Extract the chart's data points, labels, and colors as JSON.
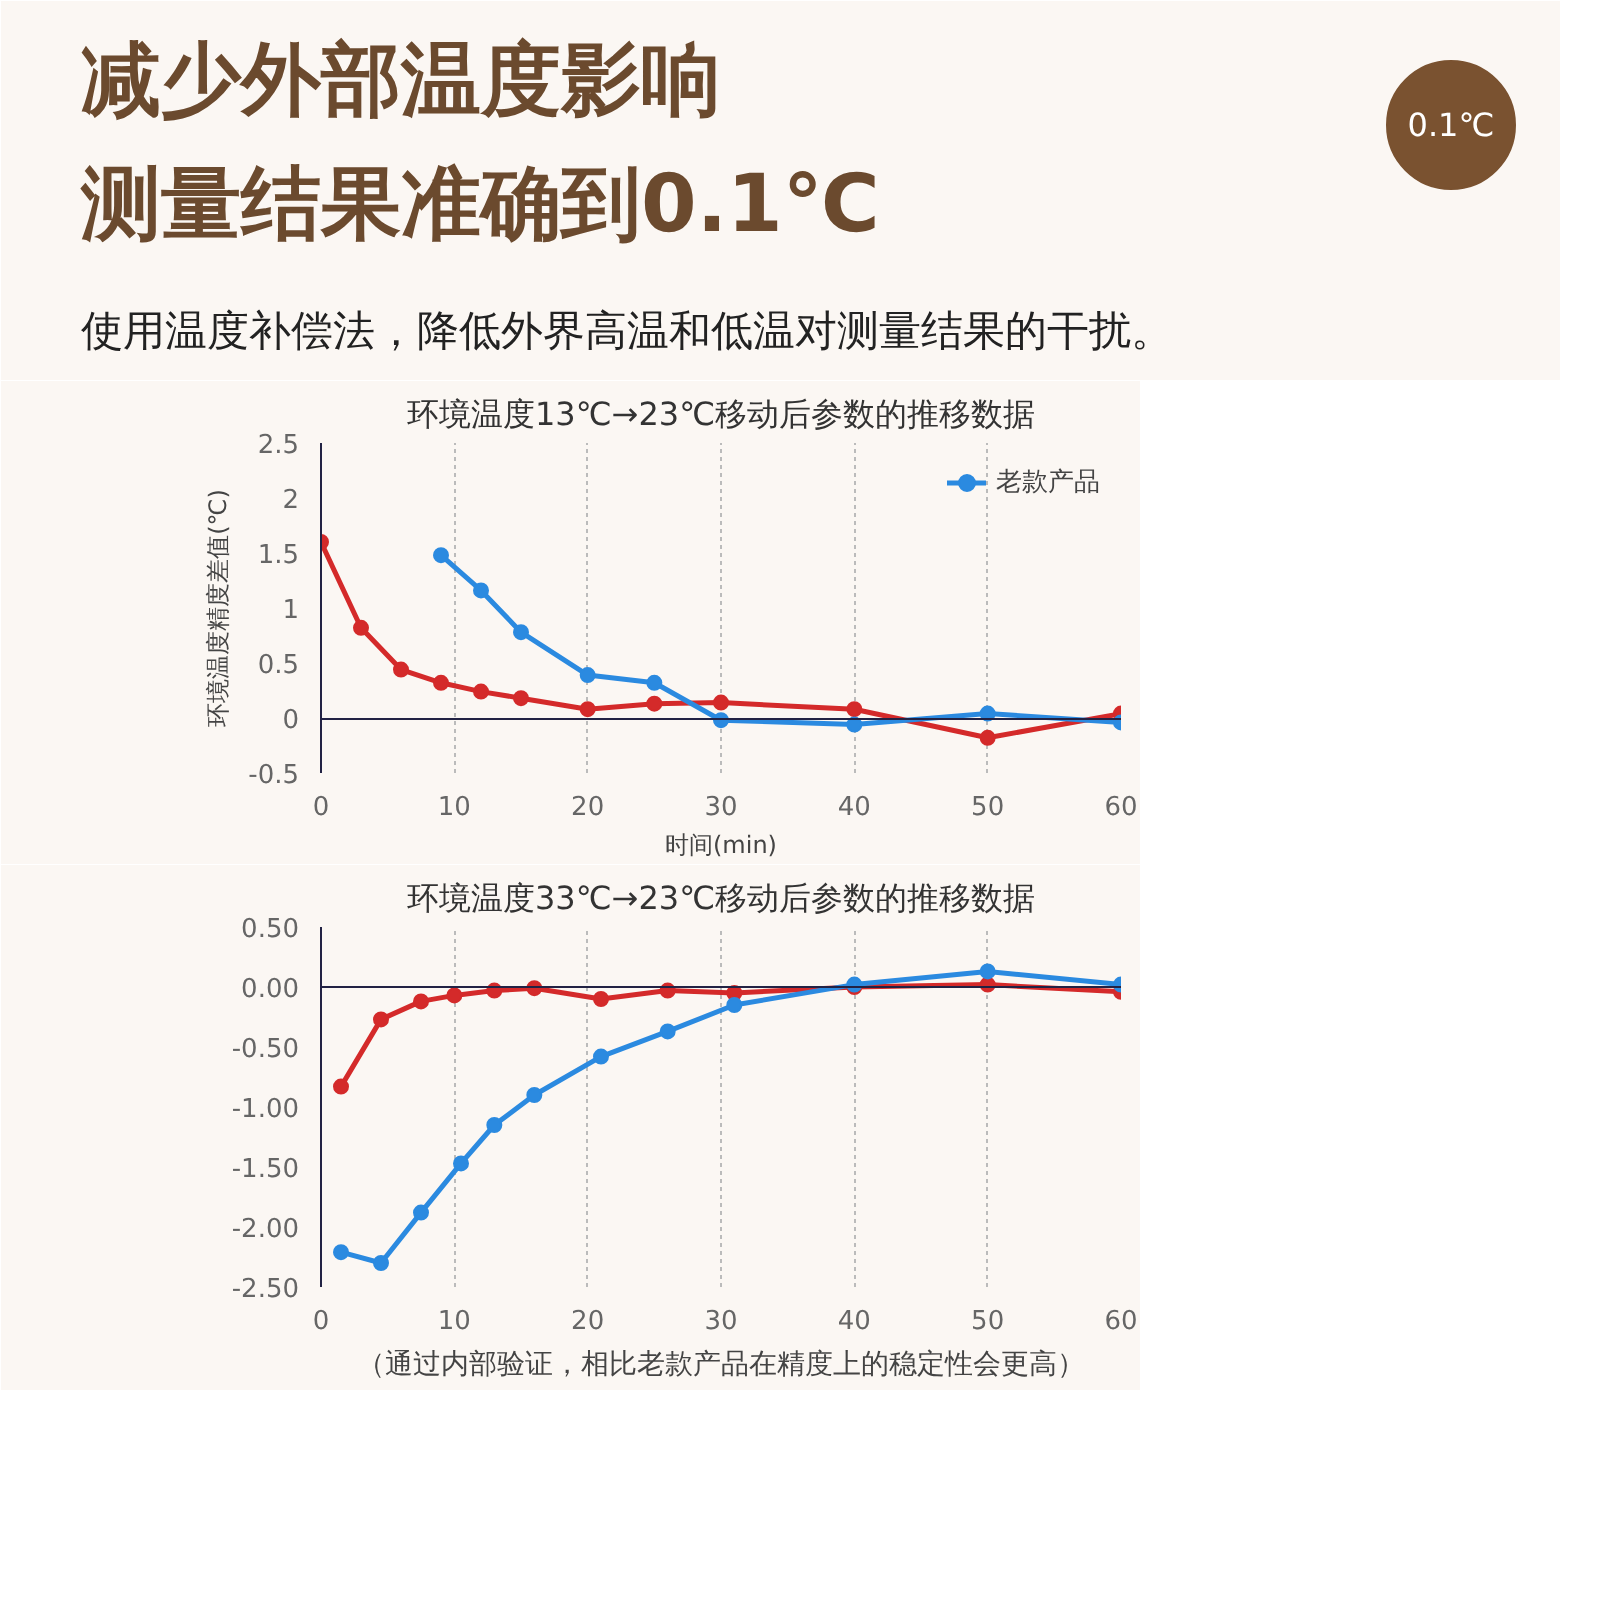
{
  "chart_data": [
    {
      "type": "other",
      "title": "减少外部温度影响测量结果准确到0.1℃",
      "subtitle": "使用温度补偿法，降低外界高温和低温对测量结果的干扰。",
      "annotations": [
        "0.1℃"
      ]
    },
    {
      "type": "line",
      "title": "环境温度13℃→23℃移动后参数的推移数据",
      "xlabel": "时间(min)",
      "ylabel": "环境温度精度差值(℃)",
      "xlim": [
        0,
        60
      ],
      "ylim": [
        -0.5,
        2.5
      ],
      "xticks": [
        0,
        10,
        20,
        30,
        40,
        50,
        60
      ],
      "yticks": [
        -0.5,
        0,
        0.5,
        1,
        1.5,
        2,
        2.5
      ],
      "grid": "x",
      "legend": "top right",
      "marker": "circle",
      "series": [
        {
          "color": "#d42a2a",
          "x": [
            0,
            3,
            6,
            9,
            12,
            15,
            20,
            25,
            30,
            40,
            50,
            60
          ],
          "values": [
            1.6,
            0.82,
            0.44,
            0.32,
            0.24,
            0.18,
            0.08,
            0.13,
            0.14,
            0.08,
            -0.18,
            0.04
          ]
        },
        {
          "name": "老款产品",
          "color": "#2b8ae0",
          "x": [
            9,
            12,
            15,
            20,
            25,
            30,
            40,
            50,
            60
          ],
          "values": [
            1.48,
            1.16,
            0.78,
            0.39,
            0.32,
            -0.02,
            -0.06,
            0.04,
            -0.04
          ]
        }
      ]
    },
    {
      "type": "line",
      "title": "环境温度33℃→23℃移动后参数的推移数据",
      "xlim": [
        0,
        60
      ],
      "ylim": [
        -2.5,
        0.5
      ],
      "xticks": [
        0,
        10,
        20,
        30,
        40,
        50,
        60
      ],
      "yticks": [
        {
          "value": -2.5,
          "label": "-2.50"
        },
        {
          "value": -2,
          "label": "-2.00"
        },
        {
          "value": -1.5,
          "label": "-1.50"
        },
        {
          "value": -1,
          "label": "-1.00"
        },
        {
          "value": -0.5,
          "label": "-0.50"
        },
        {
          "value": 0,
          "label": "0.00"
        },
        {
          "value": 0.5,
          "label": "0.50"
        }
      ],
      "grid": "x",
      "marker": "circle",
      "annotations": [
        "（通过内部验证，相比老款产品在精度上的稳定性会更高）"
      ],
      "series": [
        {
          "color": "#d42a2a",
          "x": [
            1.5,
            4.5,
            7.5,
            10,
            13,
            16,
            21,
            26,
            31,
            40,
            50,
            60
          ],
          "values": [
            -0.83,
            -0.27,
            -0.12,
            -0.07,
            -0.03,
            -0.01,
            -0.1,
            -0.03,
            -0.05,
            0,
            0.02,
            -0.04
          ]
        },
        {
          "color": "#2b8ae0",
          "x": [
            1.5,
            4.5,
            7.5,
            10.5,
            13,
            16,
            21,
            26,
            31,
            40,
            50,
            60
          ],
          "values": [
            -2.21,
            -2.3,
            -1.88,
            -1.47,
            -1.15,
            -0.9,
            -0.58,
            -0.37,
            -0.15,
            0.02,
            0.13,
            0.02
          ]
        }
      ]
    }
  ]
}
